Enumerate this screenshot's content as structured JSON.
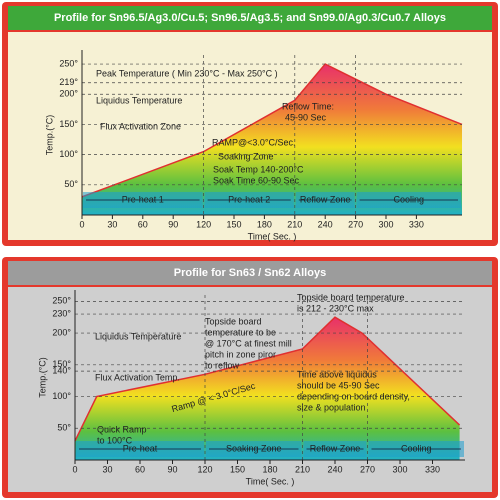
{
  "chart_data": [
    {
      "type": "area",
      "title": "Profile for Sn96.5/Ag3.0/Cu.5; Sn96.5/Ag3.5; and Sn99.0/Ag0.3/Cu0.7 Alloys",
      "x_label": "Time( Sec. )",
      "y_label": "Temp.(°C)",
      "x": [
        0,
        120,
        210,
        240,
        300,
        375
      ],
      "values": [
        30,
        105,
        190,
        250,
        200,
        150
      ],
      "xlim": [
        0,
        375
      ],
      "ylim": [
        0,
        265
      ],
      "xticks": [
        0,
        30,
        60,
        90,
        120,
        150,
        180,
        210,
        240,
        270,
        300,
        330
      ],
      "yticks": [
        {
          "value": 50,
          "label": "50°"
        },
        {
          "value": 100,
          "label": "100°"
        },
        {
          "value": 150,
          "label": "150°"
        },
        {
          "value": 200,
          "label": "200°"
        },
        {
          "value": 219,
          "label": "219°"
        },
        {
          "value": 250,
          "label": "250°"
        }
      ],
      "zones": [
        {
          "label": "Pre-heat 1",
          "start": 0,
          "end": 120
        },
        {
          "label": "Pre-heat 2",
          "start": 120,
          "end": 210
        },
        {
          "label": "Reflow Zone",
          "start": 210,
          "end": 270
        },
        {
          "label": "Cooling",
          "start": 270,
          "end": 375
        }
      ],
      "annotations": [
        "Peak Temperature ( Min 230°C - Max 250°C )",
        "Liquidus Temperature",
        "Flux Activation Zone",
        "RAMP@<3.0°C/Sec.",
        "Soaking Zone",
        "Soak Temp 140-200°C",
        "Soak Time 60-90 Sec",
        "Reflow Time:",
        "45-90 Sec"
      ]
    },
    {
      "type": "area",
      "title": "Profile for Sn63 / Sn62 Alloys",
      "x_label": "Time( Sec. )",
      "y_label": "Temp.(°C)",
      "x": [
        0,
        20,
        120,
        210,
        240,
        265,
        355
      ],
      "values": [
        30,
        100,
        135,
        175,
        225,
        200,
        55
      ],
      "xlim": [
        0,
        360
      ],
      "ylim": [
        0,
        260
      ],
      "xticks": [
        0,
        30,
        60,
        90,
        120,
        150,
        180,
        210,
        240,
        270,
        300,
        330
      ],
      "yticks": [
        {
          "value": 50,
          "label": "50°"
        },
        {
          "value": 100,
          "label": "100°"
        },
        {
          "value": 140,
          "label": "140°"
        },
        {
          "value": 150,
          "label": "150°"
        },
        {
          "value": 200,
          "label": "200°"
        },
        {
          "value": 230,
          "label": "230°"
        },
        {
          "value": 250,
          "label": "250°"
        }
      ],
      "zones": [
        {
          "label": "Pre-heat",
          "start": 0,
          "end": 120
        },
        {
          "label": "Soaking Zone",
          "start": 120,
          "end": 210
        },
        {
          "label": "Reflow Zone",
          "start": 210,
          "end": 270
        },
        {
          "label": "Cooling",
          "start": 270,
          "end": 360
        }
      ],
      "annotations": [
        "Topside board temperature",
        "is 212 - 230°C max",
        "Topside board",
        "temperature to be",
        "@ 170°C at finest mill",
        "pitch in zone piror",
        "to reflow",
        "Liquidus Temperature",
        "Flux Activation Temp.",
        "Time above liquidus",
        "should be 45-90 Sec",
        "depending on board density,",
        "size & population",
        "Quick Ramp",
        "to 100°C",
        "Ramp @ < 3.0°C/Sec"
      ]
    }
  ]
}
